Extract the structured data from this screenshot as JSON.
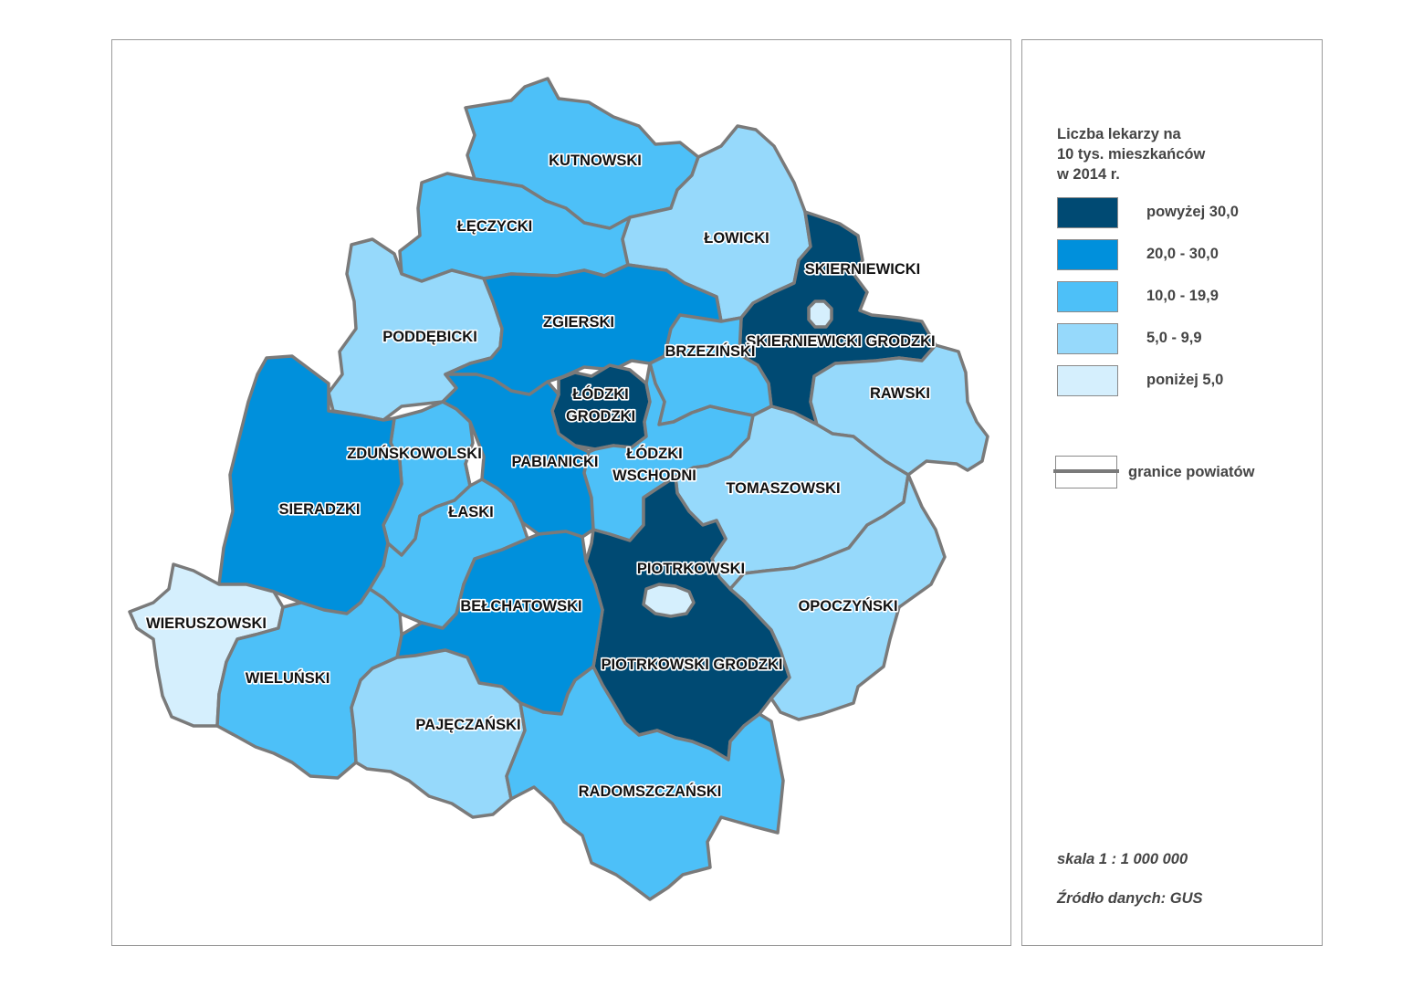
{
  "legend": {
    "title_lines": [
      "Liczba lekarzy na",
      "10 tys. mieszkańców",
      "w 2014 r."
    ],
    "classes": [
      {
        "label": "powyżej 30,0",
        "color": "#004a73"
      },
      {
        "label": "20,0 - 30,0",
        "color": "#0090dc"
      },
      {
        "label": "10,0 - 19,9",
        "color": "#4dc0f8"
      },
      {
        "label": "5,0 - 9,9",
        "color": "#96d9fb"
      },
      {
        "label": "poniżej 5,0",
        "color": "#d5effd"
      }
    ],
    "boundary_label": "granice powiatów",
    "scale": "skala 1 : 1 000 000",
    "source": "Źródło danych: GUS"
  },
  "map": {
    "boundary_color": "#7a7a7a",
    "districts": [
      {
        "name": "KUTNOWSKI",
        "class_index": 2
      },
      {
        "name": "ŁĘCZYCKI",
        "class_index": 2
      },
      {
        "name": "ŁOWICKI",
        "class_index": 3
      },
      {
        "name": "SKIERNIEWICKI GRODZKI",
        "class_index": 0
      },
      {
        "name": "SKIERNIEWICKI",
        "class_index": 4
      },
      {
        "name": "PODDĘBICKI",
        "class_index": 3
      },
      {
        "name": "ZGIERSKI",
        "class_index": 1
      },
      {
        "name": "BRZEZIŃSKI",
        "class_index": 2
      },
      {
        "name": "RAWSKI",
        "class_index": 3
      },
      {
        "name": "ŁÓDZKI GRODZKI",
        "class_index": 0
      },
      {
        "name": "ZDUŃSKOWOLSKI",
        "class_index": 2
      },
      {
        "name": "PABIANICKI",
        "class_index": 1
      },
      {
        "name": "ŁÓDZKI WSCHODNI",
        "class_index": 2
      },
      {
        "name": "TOMASZOWSKI",
        "class_index": 3
      },
      {
        "name": "SIERADZKI",
        "class_index": 1
      },
      {
        "name": "ŁASKI",
        "class_index": 2
      },
      {
        "name": "PIOTRKOWSKI GRODZKI",
        "class_index": 0
      },
      {
        "name": "PIOTRKOWSKI",
        "class_index": 4
      },
      {
        "name": "OPOCZYŃSKI",
        "class_index": 3
      },
      {
        "name": "BEŁCHATOWSKI",
        "class_index": 1
      },
      {
        "name": "WIERUSZOWSKI",
        "class_index": 4
      },
      {
        "name": "WIELUŃSKI",
        "class_index": 2
      },
      {
        "name": "PAJĘCZAŃSKI",
        "class_index": 3
      },
      {
        "name": "RADOMSZCZAŃSKI",
        "class_index": 2
      }
    ]
  }
}
